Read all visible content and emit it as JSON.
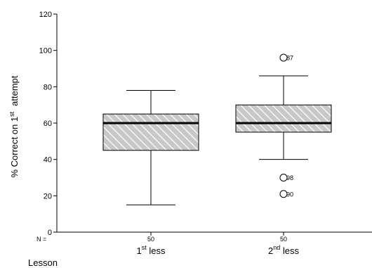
{
  "chart_data": {
    "type": "boxplot",
    "title": "",
    "xlabel": "Lesson",
    "ylabel": {
      "prefix": "% Correct on 1",
      "sup": "st",
      "suffix": "attempt"
    },
    "ylim": [
      0,
      120
    ],
    "yticks": [
      0,
      20,
      40,
      60,
      80,
      100,
      120
    ],
    "n_label": "N =",
    "grid": false,
    "legend": "none",
    "fill_color": "#c8c8c8",
    "hatch_color": "#ffffff",
    "categories": [
      {
        "base": "1",
        "sup": "st",
        "suffix": "less",
        "n": "50"
      },
      {
        "base": "2",
        "sup": "nd",
        "suffix": "less",
        "n": "50"
      }
    ],
    "boxes": [
      {
        "whisker_low": 15,
        "q1": 45,
        "median": 60,
        "q3": 65,
        "whisker_high": 78,
        "outliers": []
      },
      {
        "whisker_low": 40,
        "q1": 55,
        "median": 60,
        "q3": 70,
        "whisker_high": 86,
        "outliers": [
          {
            "value": 96,
            "label": "87"
          },
          {
            "value": 30,
            "label": "98"
          },
          {
            "value": 21,
            "label": "90"
          }
        ]
      }
    ]
  }
}
